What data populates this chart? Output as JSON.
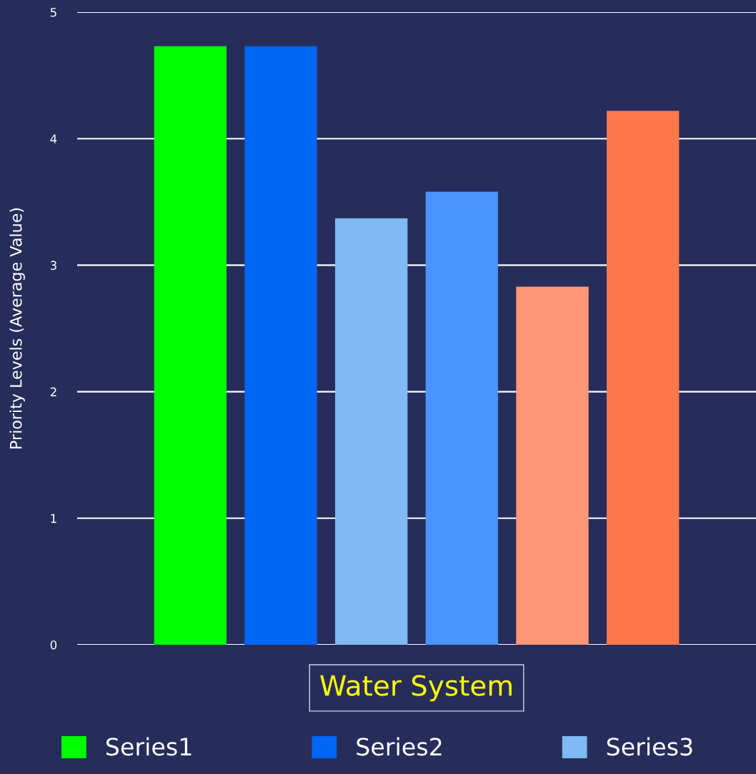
{
  "chart_data": {
    "type": "bar",
    "ylabel": "Priority Levels (Average Value)",
    "categories": [
      "Water System"
    ],
    "series": [
      {
        "name": "Series1",
        "color": "#00ff00",
        "values": [
          4.73
        ]
      },
      {
        "name": "Series2",
        "color": "#0066f5",
        "values": [
          4.73
        ]
      },
      {
        "name": "Series3",
        "color": "#80b9f3",
        "values": [
          3.37
        ]
      },
      {
        "color": "#4a94ff",
        "values": [
          3.58
        ]
      },
      {
        "color": "#ff9678",
        "values": [
          2.83
        ]
      },
      {
        "color": "#ff784c",
        "values": [
          4.22
        ]
      }
    ],
    "ylim": [
      0,
      5
    ],
    "yticks": [
      0,
      1,
      2,
      3,
      4,
      5
    ],
    "grid": "y",
    "legend": "bottom"
  }
}
